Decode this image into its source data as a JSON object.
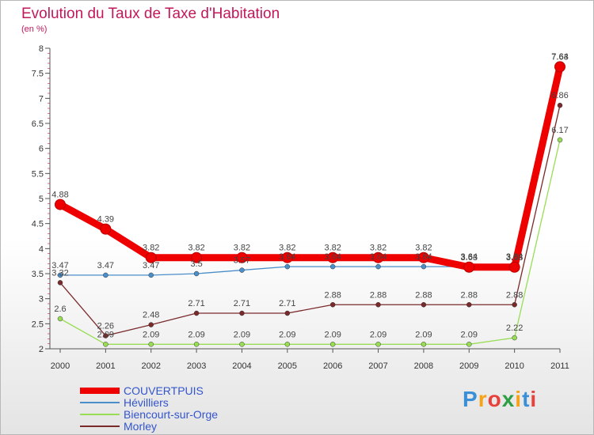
{
  "chart_data": {
    "type": "line",
    "title": "Evolution du Taux de Taxe d'Habitation",
    "subtitle": "(en %)",
    "x": [
      "2000",
      "2001",
      "2002",
      "2003",
      "2004",
      "2005",
      "2006",
      "2007",
      "2008",
      "2009",
      "2010",
      "2011"
    ],
    "ylim": [
      2,
      8
    ],
    "yticks": [
      "2",
      "2.5",
      "3",
      "3.5",
      "4",
      "4.5",
      "5",
      "5.5",
      "6",
      "6.5",
      "7",
      "7.5",
      "8"
    ],
    "series": [
      {
        "name": "COUVERTPUIS",
        "color": "#ee0000",
        "values": [
          4.88,
          4.39,
          3.82,
          3.82,
          3.82,
          3.82,
          3.82,
          3.82,
          3.82,
          3.63,
          3.63,
          7.63
        ],
        "labels": [
          "4.88",
          "4.39",
          "3.82",
          "3.82",
          "3.82",
          "3.82",
          "3.82",
          "3.82",
          "3.82",
          "3.63",
          "3.63",
          "7.63"
        ]
      },
      {
        "name": "Hévilliers",
        "color": "#4a8fc9",
        "values": [
          3.47,
          3.47,
          3.47,
          3.5,
          3.57,
          3.64,
          3.64,
          3.64,
          3.64,
          3.64,
          3.64,
          7.64
        ],
        "labels": [
          "3.47",
          "3.47",
          "3.47",
          "3.5",
          "3.57",
          "3.64",
          "3.64",
          "3.64",
          "3.64",
          "3.64",
          "3.64",
          "7.64"
        ]
      },
      {
        "name": "Biencourt-sur-Orge",
        "color": "#99dd55",
        "values": [
          2.6,
          2.09,
          2.09,
          2.09,
          2.09,
          2.09,
          2.09,
          2.09,
          2.09,
          2.09,
          2.22,
          6.17
        ],
        "labels": [
          "2.6",
          "2.09",
          "2.09",
          "2.09",
          "2.09",
          "2.09",
          "2.09",
          "2.09",
          "2.09",
          "2.09",
          "2.22",
          "6.17"
        ]
      },
      {
        "name": "Morley",
        "color": "#7a2a2a",
        "values": [
          3.32,
          2.26,
          2.48,
          2.71,
          2.71,
          2.71,
          2.88,
          2.88,
          2.88,
          2.88,
          2.88,
          6.86
        ],
        "labels": [
          "3.32",
          "2.26",
          "2.48",
          "2.71",
          "2.71",
          "2.71",
          "2.88",
          "2.88",
          "2.88",
          "2.88",
          "2.88",
          "6.86"
        ]
      }
    ],
    "legend_position": "bottom-left",
    "grid": false
  },
  "logo": {
    "letters": [
      "P",
      "r",
      "o",
      "x",
      "i",
      "t",
      "i"
    ],
    "colors": [
      "#3a8fd6",
      "#f7a21b",
      "#e8413c",
      "#2f9e44",
      "#f7a21b",
      "#3a8fd6",
      "#e8413c"
    ]
  }
}
